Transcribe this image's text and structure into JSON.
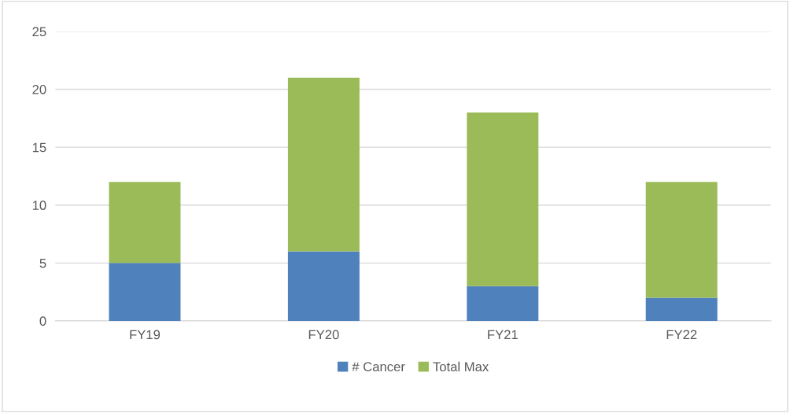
{
  "chart_data": {
    "type": "bar",
    "stacked": true,
    "categories": [
      "FY19",
      "FY20",
      "FY21",
      "FY22"
    ],
    "series": [
      {
        "name": "# Cancer",
        "color": "#4f81bd",
        "values": [
          5,
          6,
          3,
          2
        ]
      },
      {
        "name": "Total Max",
        "color": "#9bbb59",
        "values": [
          7,
          15,
          15,
          10
        ]
      }
    ],
    "ylim": [
      0,
      25
    ],
    "yticks": [
      0,
      5,
      10,
      15,
      20,
      25
    ],
    "grid": "y",
    "legend": "bottom"
  }
}
